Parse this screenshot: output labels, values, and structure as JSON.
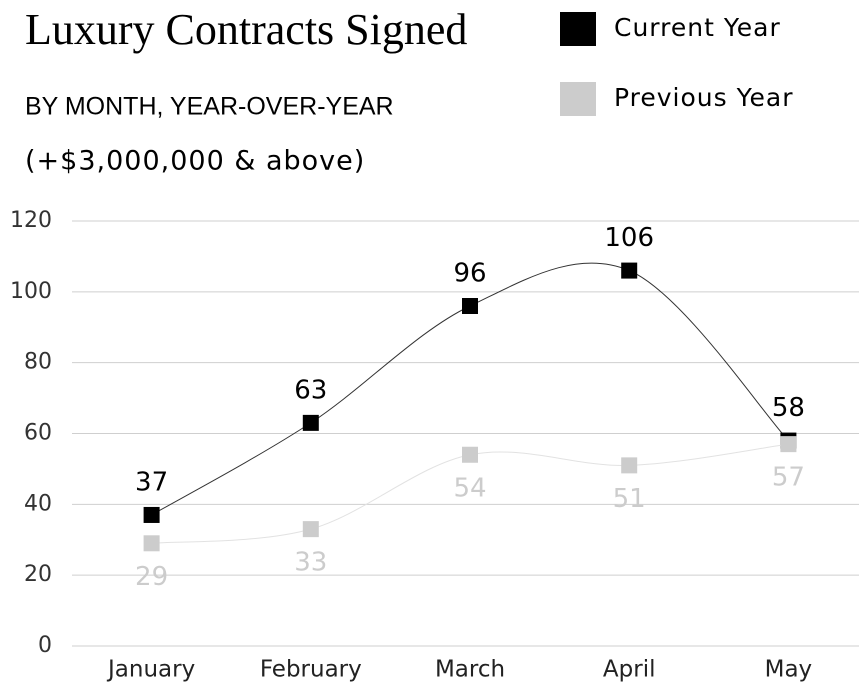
{
  "chart_data": {
    "type": "line",
    "title": "Luxury Contracts Signed",
    "subtitle": "BY MONTH, YEAR-OVER-YEAR",
    "annotation": "(+$3,000,000 & above)",
    "categories": [
      "January",
      "February",
      "March",
      "April",
      "May"
    ],
    "series": [
      {
        "name": "Current Year",
        "color": "#000000",
        "values": [
          37,
          63,
          96,
          106,
          58
        ]
      },
      {
        "name": "Previous Year",
        "color": "#cccccc",
        "values": [
          29,
          33,
          54,
          51,
          57
        ]
      }
    ],
    "ylim": [
      0,
      120
    ],
    "yticks": [
      0,
      20,
      40,
      60,
      80,
      100,
      120
    ],
    "grid": true,
    "smooth": true
  }
}
